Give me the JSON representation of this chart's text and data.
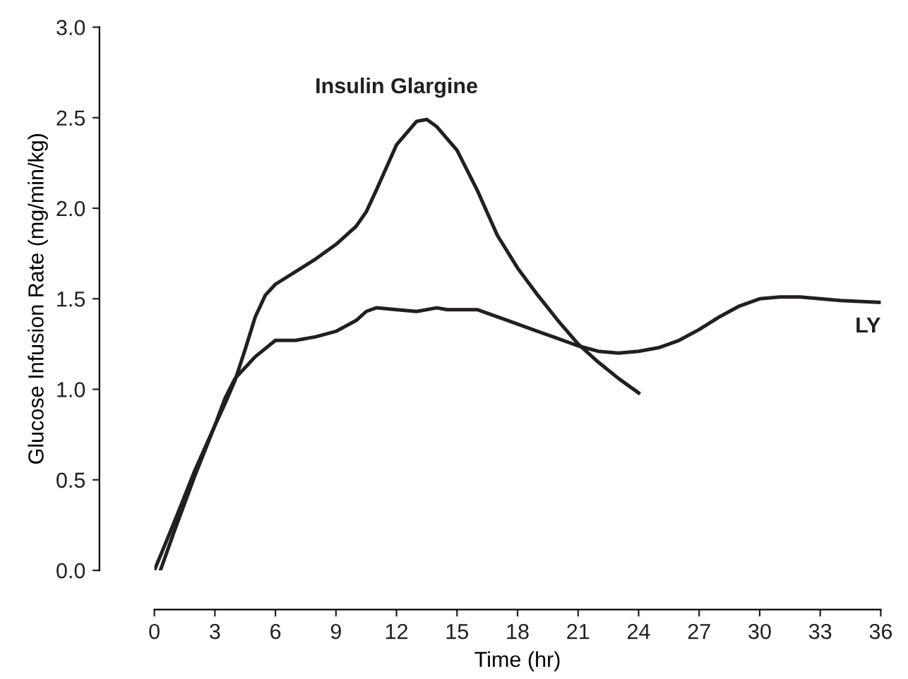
{
  "chart_data": {
    "type": "line",
    "xlabel": "Time (hr)",
    "ylabel": "Glucose Infusion Rate (mg/min/kg)",
    "xlim": [
      0,
      36
    ],
    "xticks": [
      0,
      3,
      6,
      9,
      12,
      15,
      18,
      21,
      24,
      27,
      30,
      33,
      36
    ],
    "ylim": [
      0,
      3
    ],
    "yticks": [
      {
        "value": 0,
        "label": "0.0"
      },
      {
        "value": 0.5,
        "label": "0.5"
      },
      {
        "value": 1,
        "label": "1.0"
      },
      {
        "value": 1.5,
        "label": "1.5"
      },
      {
        "value": 2,
        "label": "2.0"
      },
      {
        "value": 2.5,
        "label": "2.5"
      },
      {
        "value": 3,
        "label": "3.0"
      }
    ],
    "grid": false,
    "legend": false,
    "marker": "none",
    "line_style": "solid",
    "series": [
      {
        "name": "Insulin Glargine",
        "color": "#231f20",
        "x": [
          0.3,
          1,
          2,
          3,
          3.5,
          4,
          4.5,
          5,
          5.5,
          6,
          7,
          8,
          9,
          10,
          10.5,
          11,
          12,
          13,
          13.5,
          14,
          15,
          16,
          17,
          18,
          19,
          20,
          21,
          22,
          23,
          24
        ],
        "values": [
          0,
          0.22,
          0.52,
          0.8,
          0.92,
          1.05,
          1.22,
          1.4,
          1.52,
          1.58,
          1.65,
          1.72,
          1.8,
          1.9,
          1.98,
          2.1,
          2.35,
          2.48,
          2.49,
          2.45,
          2.32,
          2.1,
          1.85,
          1.67,
          1.52,
          1.38,
          1.25,
          1.15,
          1.06,
          0.98
        ]
      },
      {
        "name": "LY",
        "color": "#231f20",
        "x": [
          0,
          1,
          2,
          3,
          3.5,
          4,
          5,
          6,
          7,
          8,
          9,
          10,
          10.5,
          11,
          12,
          13,
          14,
          14.5,
          15,
          16,
          17,
          18,
          20,
          21,
          22,
          23,
          24,
          25,
          26,
          27,
          28,
          29,
          30,
          31,
          32,
          33,
          34,
          36
        ],
        "values": [
          0,
          0.27,
          0.55,
          0.8,
          0.95,
          1.06,
          1.18,
          1.27,
          1.27,
          1.29,
          1.32,
          1.38,
          1.43,
          1.45,
          1.44,
          1.43,
          1.45,
          1.44,
          1.44,
          1.44,
          1.4,
          1.36,
          1.28,
          1.24,
          1.21,
          1.2,
          1.21,
          1.23,
          1.27,
          1.33,
          1.4,
          1.46,
          1.5,
          1.51,
          1.51,
          1.5,
          1.49,
          1.48
        ]
      }
    ]
  }
}
